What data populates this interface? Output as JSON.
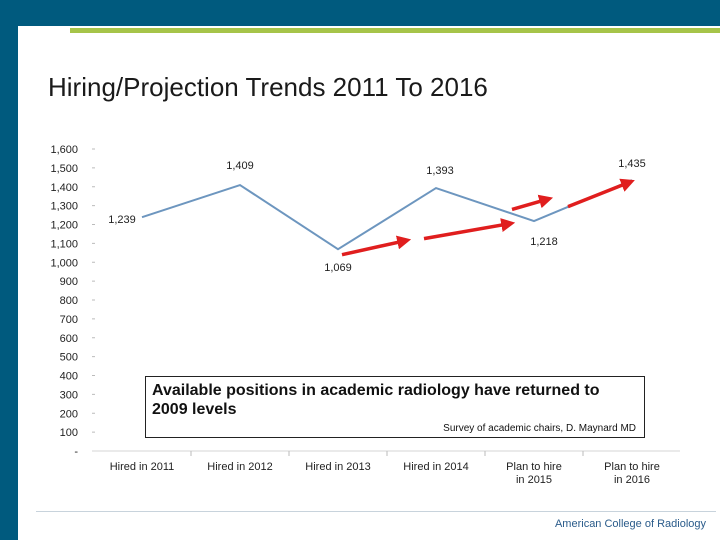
{
  "slide": {
    "title": "Hiring/Projection Trends 2011 To 2016",
    "footer": "American College of Radiology"
  },
  "callout": {
    "text": "Available positions in academic radiology have returned to 2009 levels",
    "source": "Survey of academic chairs, D. Maynard MD"
  },
  "colors": {
    "brand_blue": "#005a7e",
    "accent_green": "#a6c449",
    "series_line": "#6d96bf",
    "arrow_red": "#e01e1e"
  },
  "chart_data": {
    "type": "line",
    "title": "",
    "xlabel": "",
    "ylabel": "",
    "categories": [
      "Hired in 2011",
      "Hired in 2012",
      "Hired in 2013",
      "Hired in 2014",
      "Plan to hire in 2015",
      "Plan to hire in 2016"
    ],
    "series": [
      {
        "name": "Positions",
        "values": [
          1239,
          1409,
          1069,
          1393,
          1218,
          1435
        ]
      }
    ],
    "data_labels": [
      "1,239",
      "1,409",
      "1,069",
      "1,393",
      "1,218",
      "1,435"
    ],
    "y_ticks": [
      "-",
      "100",
      "200",
      "300",
      "400",
      "500",
      "600",
      "700",
      "800",
      "900",
      "1,000",
      "1,100",
      "1,200",
      "1,300",
      "1,400",
      "1,500",
      "1,600"
    ],
    "ylim": [
      0,
      1600
    ],
    "ystep": 100,
    "grid": false,
    "trend_arrows": 4
  }
}
